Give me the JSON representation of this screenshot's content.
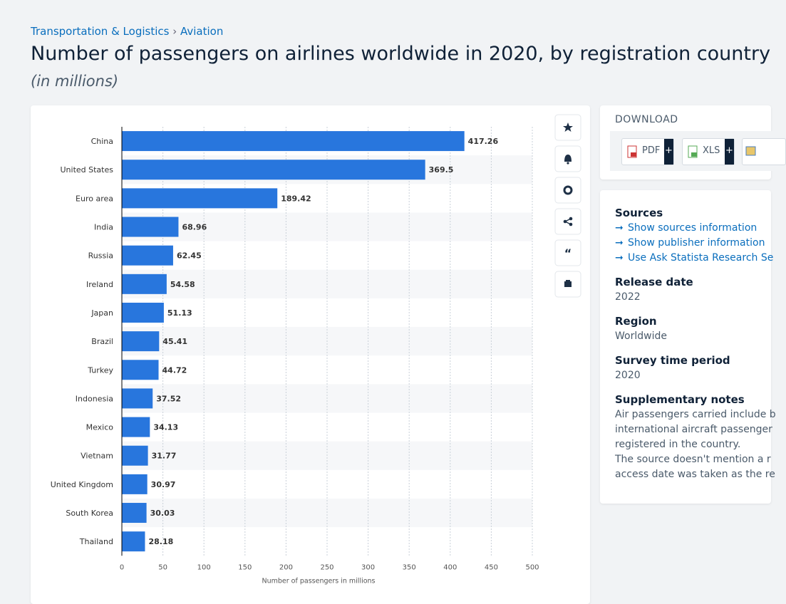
{
  "breadcrumb": [
    "Transportation & Logistics",
    "Aviation"
  ],
  "header": {
    "title": "Number of passengers on airlines worldwide in 2020, by registration country",
    "subtitle": "(in millions)"
  },
  "chart_data": {
    "type": "bar",
    "orientation": "horizontal",
    "categories": [
      "China",
      "United States",
      "Euro area",
      "India",
      "Russia",
      "Ireland",
      "Japan",
      "Brazil",
      "Turkey",
      "Indonesia",
      "Mexico",
      "Vietnam",
      "United Kingdom",
      "South Korea",
      "Thailand"
    ],
    "values": [
      417.26,
      369.5,
      189.42,
      68.96,
      62.45,
      54.58,
      51.13,
      45.41,
      44.72,
      37.52,
      34.13,
      31.77,
      30.97,
      30.03,
      28.18
    ],
    "color": "#2876dd",
    "xlim": [
      0,
      500
    ],
    "xticks": [
      0,
      50,
      100,
      150,
      200,
      250,
      300,
      350,
      400,
      450,
      500
    ],
    "x_label": "Number of passengers in millions",
    "grid": true
  },
  "download": {
    "title": "DOWNLOAD",
    "buttons": [
      "PDF",
      "XLS"
    ]
  },
  "details": {
    "sources_title": "Sources",
    "links": [
      "Show sources information",
      "Show publisher information",
      "Use Ask Statista Research Se"
    ],
    "items": [
      {
        "label": "Release date",
        "value": "2022"
      },
      {
        "label": "Region",
        "value": "Worldwide"
      },
      {
        "label": "Survey time period",
        "value": "2020"
      }
    ],
    "notes_title": "Supplementary notes",
    "notes": [
      "Air passengers carried include b",
      "international aircraft passenger",
      "registered in the country.",
      "The source doesn't mention a r",
      "access date was taken as the re"
    ]
  }
}
